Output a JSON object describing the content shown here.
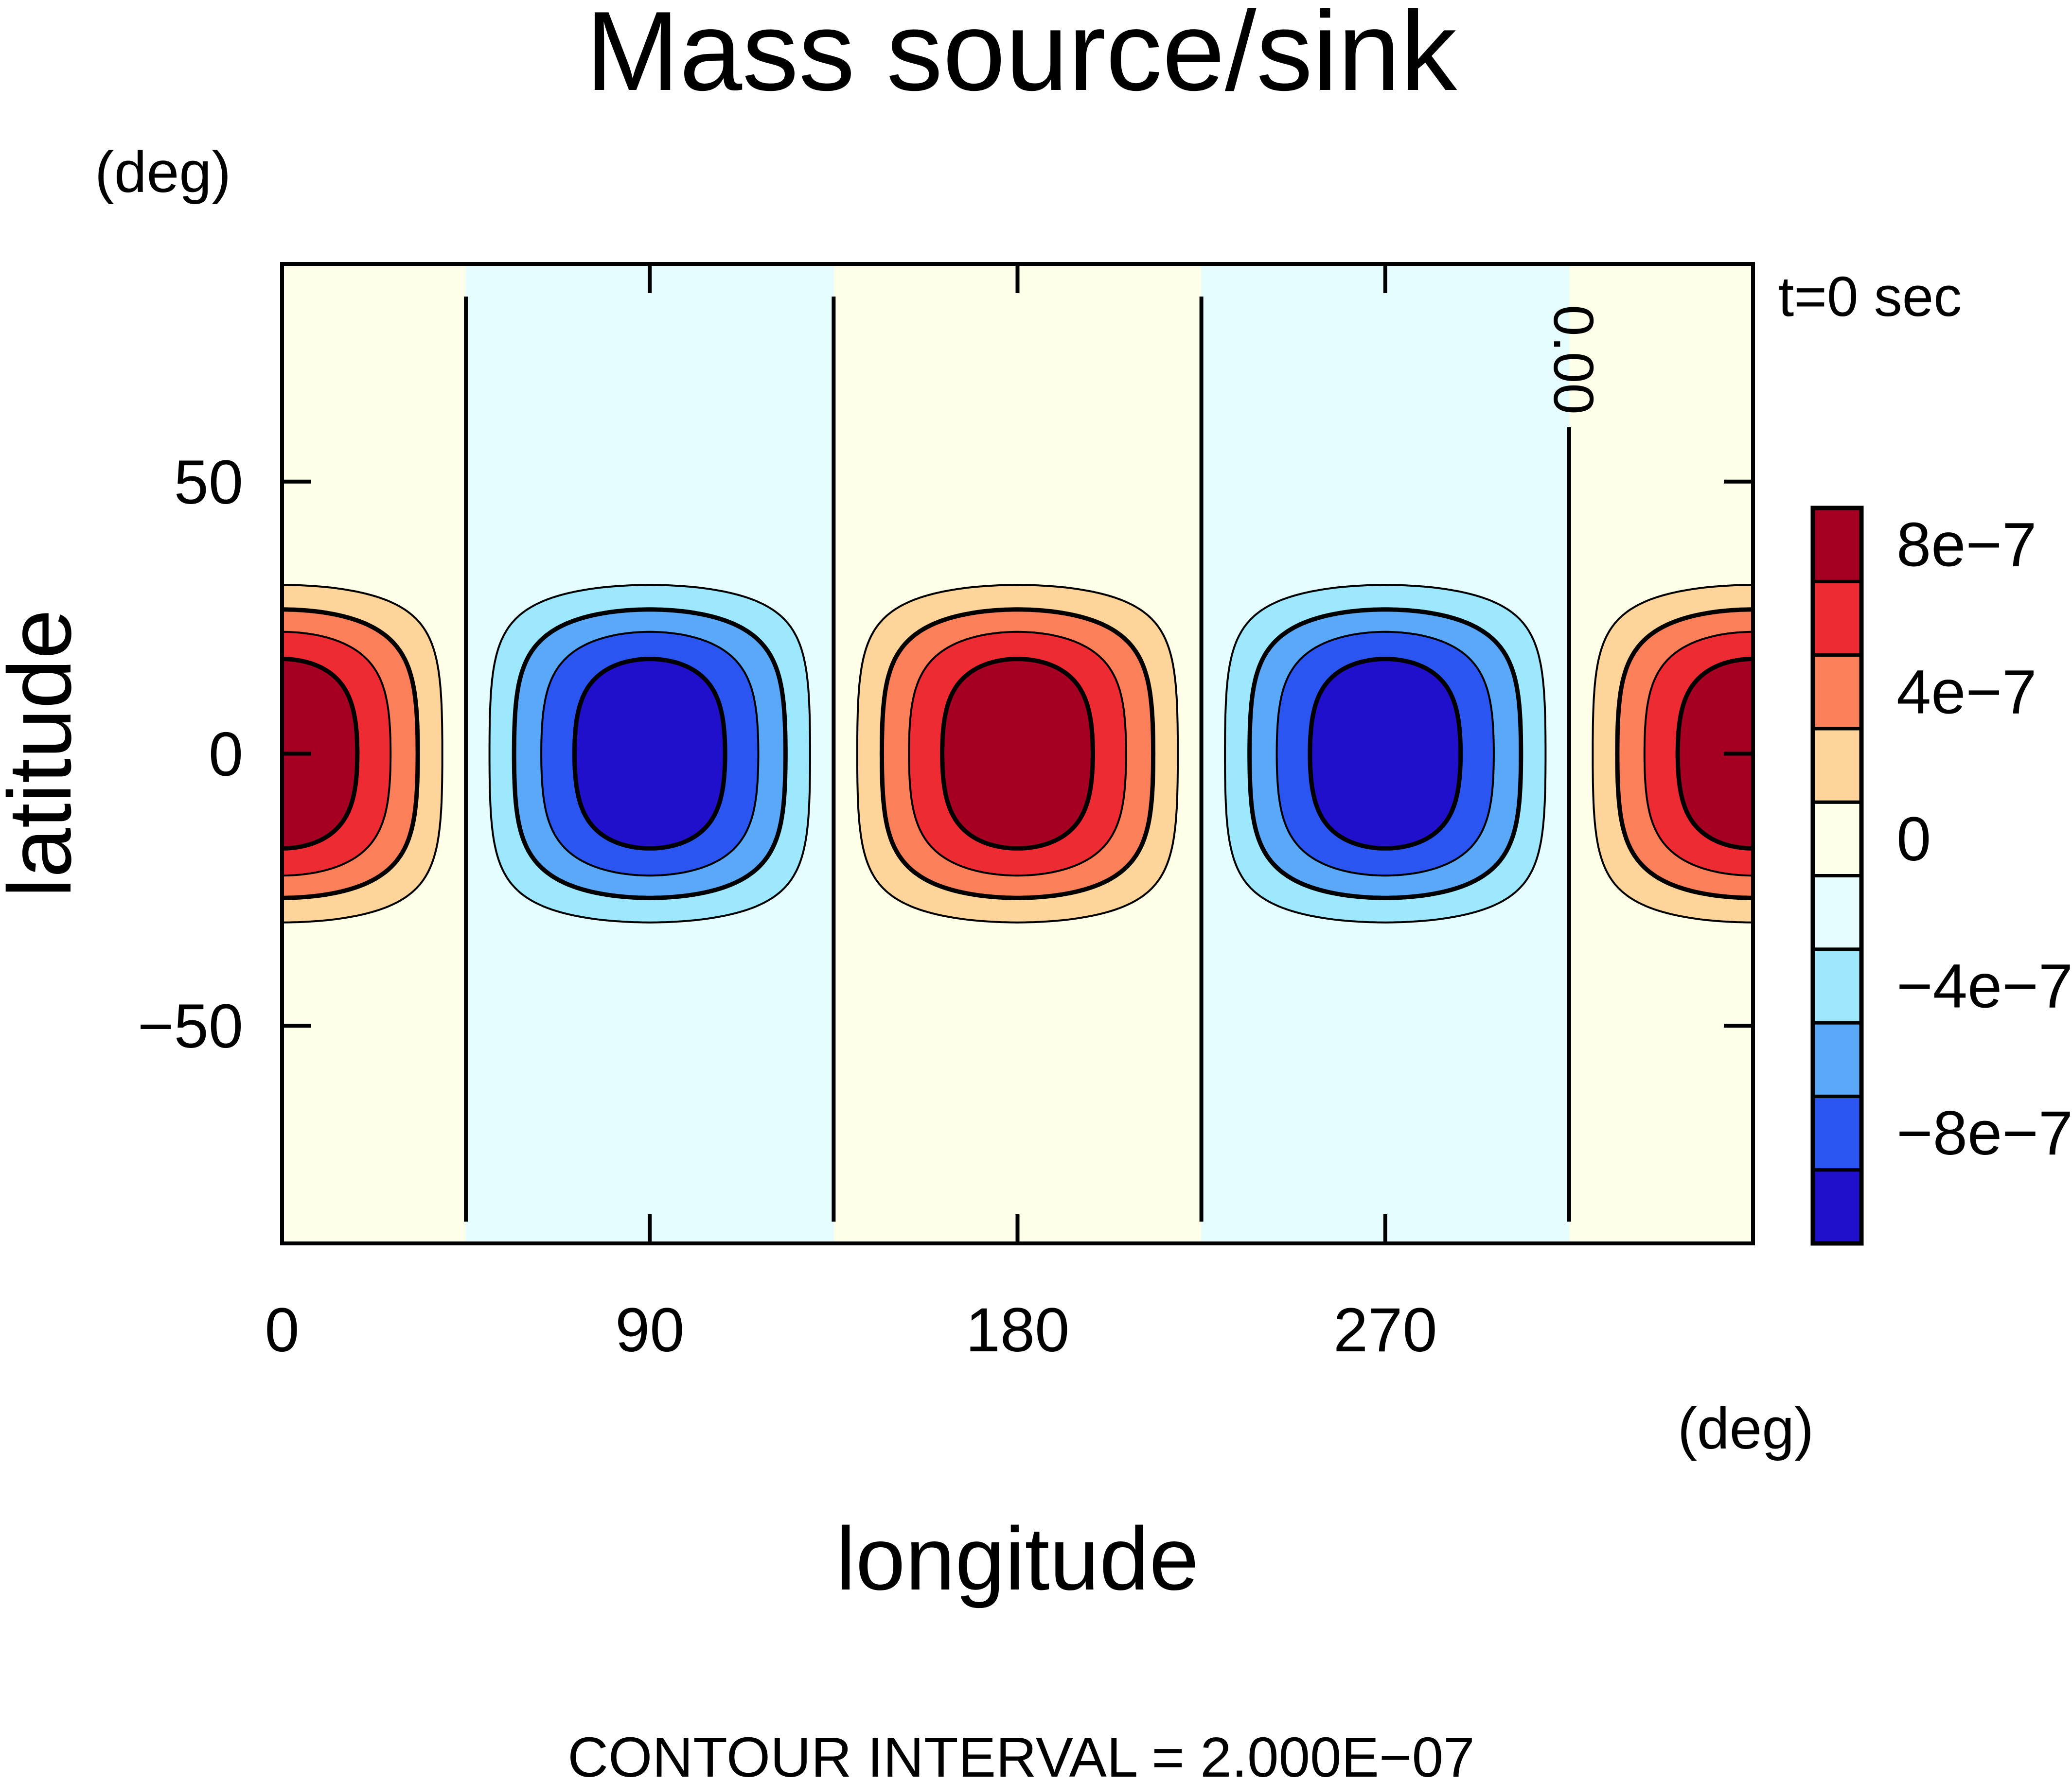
{
  "chart_data": {
    "type": "heatmap",
    "title": "Mass source/sink",
    "xlabel": "longitude",
    "ylabel": "latitude",
    "x_unit": "(deg)",
    "y_unit": "(deg)",
    "xlim": [
      0,
      360
    ],
    "ylim": [
      -90,
      90
    ],
    "xticks": [
      0,
      90,
      180,
      270
    ],
    "xtick_labels": [
      "0",
      "90",
      "180",
      "270"
    ],
    "yticks": [
      -50,
      0,
      50
    ],
    "ytick_labels": [
      "−50",
      "0",
      "50"
    ],
    "time_label": "t=0 sec",
    "contour_interval_text": "CONTOUR INTERVAL = 2.000E−07",
    "contour_label": "0.00",
    "field": {
      "description": "zonal wavenumber 2 pattern confined to the equator",
      "peak_value": 1e-06,
      "wavenumber": 2,
      "max_longitudes": [
        0,
        180,
        360
      ],
      "min_longitudes": [
        90,
        270
      ],
      "zero_longitudes": [
        45,
        135,
        225,
        315
      ],
      "meridional_halfwidth_deg": 25
    },
    "colorbar": {
      "levels": [
        -1e-06,
        -8e-07,
        -6e-07,
        -4e-07,
        -2e-07,
        0,
        2e-07,
        4e-07,
        6e-07,
        8e-07,
        1e-06
      ],
      "colors": [
        "#2010cc",
        "#2a55f0",
        "#5aa8f8",
        "#9ee8fe",
        "#e6fdff",
        "#fefee9",
        "#fdd59a",
        "#fb7f58",
        "#ee2b33",
        "#a50022"
      ],
      "tick_labels": [
        {
          "value": 8e-07,
          "label": "8e−7"
        },
        {
          "value": 4e-07,
          "label": "4e−7"
        },
        {
          "value": 0,
          "label": "0"
        },
        {
          "value": -4e-07,
          "label": "−4e−7"
        },
        {
          "value": -8e-07,
          "label": "−8e−7"
        }
      ]
    }
  }
}
